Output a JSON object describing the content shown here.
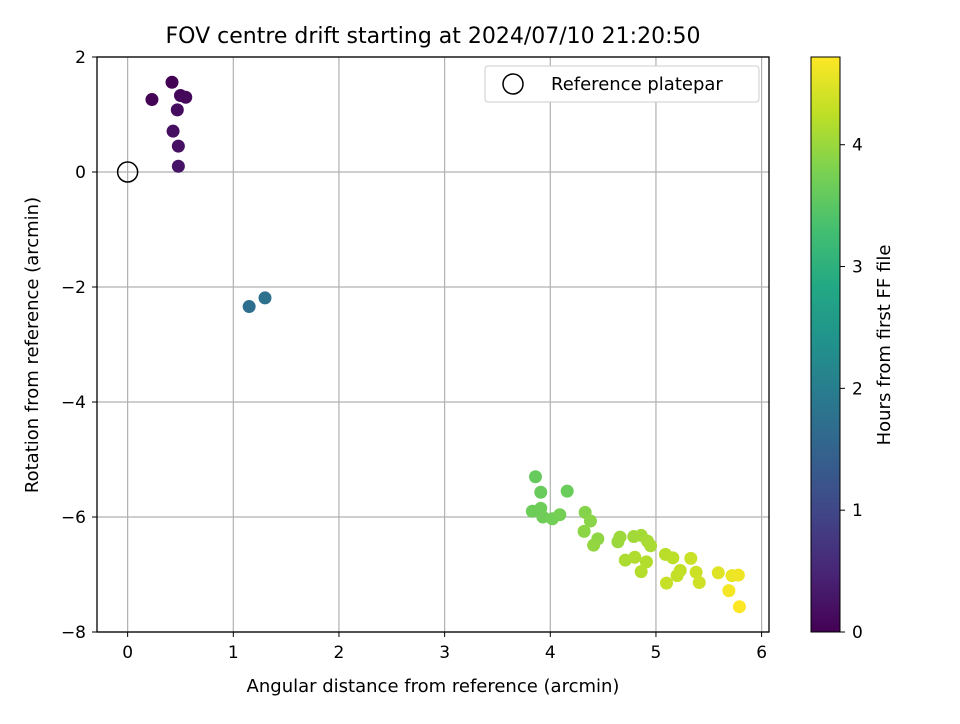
{
  "chart_data": {
    "type": "scatter",
    "title": "FOV centre drift starting at 2024/07/10 21:20:50",
    "xlabel": "Angular distance from reference (arcmin)",
    "ylabel": "Rotation from reference (arcmin)",
    "xlim": [
      -0.29,
      6.07
    ],
    "ylim": [
      -8.0,
      2.0
    ],
    "x_ticks": [
      0,
      1,
      2,
      3,
      4,
      5,
      6
    ],
    "y_ticks": [
      -8,
      -6,
      -4,
      -2,
      0,
      2
    ],
    "grid": true,
    "legend": {
      "placement": "top-right",
      "entries": [
        "Reference platepar"
      ]
    },
    "reference": {
      "x": 0,
      "y": 0,
      "label": "Reference platepar"
    },
    "colorbar": {
      "label": "Hours from first FF file",
      "colormap": "viridis",
      "range": [
        0,
        4.72
      ],
      "ticks": [
        0,
        1,
        2,
        3,
        4
      ]
    },
    "points": [
      {
        "x": 0.42,
        "y": 1.56,
        "h": 0.02
      },
      {
        "x": 0.23,
        "y": 1.26,
        "h": 0.05
      },
      {
        "x": 0.5,
        "y": 1.33,
        "h": 0.08
      },
      {
        "x": 0.55,
        "y": 1.3,
        "h": 0.1
      },
      {
        "x": 0.47,
        "y": 1.08,
        "h": 0.14
      },
      {
        "x": 0.43,
        "y": 0.71,
        "h": 0.18
      },
      {
        "x": 0.48,
        "y": 0.45,
        "h": 0.22
      },
      {
        "x": 0.48,
        "y": 0.1,
        "h": 0.26
      },
      {
        "x": 1.15,
        "y": -2.34,
        "h": 1.7
      },
      {
        "x": 1.3,
        "y": -2.19,
        "h": 1.75
      },
      {
        "x": 3.86,
        "y": -5.3,
        "h": 3.6
      },
      {
        "x": 3.91,
        "y": -5.57,
        "h": 3.62
      },
      {
        "x": 4.16,
        "y": -5.55,
        "h": 3.64
      },
      {
        "x": 3.83,
        "y": -5.9,
        "h": 3.66
      },
      {
        "x": 3.91,
        "y": -5.85,
        "h": 3.66
      },
      {
        "x": 3.93,
        "y": -6.0,
        "h": 3.68
      },
      {
        "x": 4.02,
        "y": -6.03,
        "h": 3.7
      },
      {
        "x": 4.09,
        "y": -5.96,
        "h": 3.72
      },
      {
        "x": 4.33,
        "y": -5.92,
        "h": 3.85
      },
      {
        "x": 4.38,
        "y": -6.07,
        "h": 3.88
      },
      {
        "x": 4.32,
        "y": -6.25,
        "h": 3.9
      },
      {
        "x": 4.45,
        "y": -6.38,
        "h": 3.92
      },
      {
        "x": 4.41,
        "y": -6.49,
        "h": 3.95
      },
      {
        "x": 4.64,
        "y": -6.43,
        "h": 4.0
      },
      {
        "x": 4.66,
        "y": -6.35,
        "h": 4.02
      },
      {
        "x": 4.79,
        "y": -6.34,
        "h": 4.05
      },
      {
        "x": 4.86,
        "y": -6.32,
        "h": 4.07
      },
      {
        "x": 4.92,
        "y": -6.42,
        "h": 4.09
      },
      {
        "x": 4.95,
        "y": -6.5,
        "h": 4.11
      },
      {
        "x": 4.71,
        "y": -6.75,
        "h": 4.13
      },
      {
        "x": 4.8,
        "y": -6.7,
        "h": 4.15
      },
      {
        "x": 4.91,
        "y": -6.78,
        "h": 4.17
      },
      {
        "x": 4.86,
        "y": -6.95,
        "h": 4.19
      },
      {
        "x": 5.09,
        "y": -6.65,
        "h": 4.22
      },
      {
        "x": 5.16,
        "y": -6.71,
        "h": 4.24
      },
      {
        "x": 5.23,
        "y": -6.93,
        "h": 4.27
      },
      {
        "x": 5.2,
        "y": -7.02,
        "h": 4.29
      },
      {
        "x": 5.1,
        "y": -7.15,
        "h": 4.31
      },
      {
        "x": 5.33,
        "y": -6.72,
        "h": 4.34
      },
      {
        "x": 5.38,
        "y": -6.96,
        "h": 4.36
      },
      {
        "x": 5.41,
        "y": -7.14,
        "h": 4.38
      },
      {
        "x": 5.59,
        "y": -6.97,
        "h": 4.5
      },
      {
        "x": 5.72,
        "y": -7.02,
        "h": 4.58
      },
      {
        "x": 5.78,
        "y": -7.01,
        "h": 4.62
      },
      {
        "x": 5.69,
        "y": -7.28,
        "h": 4.65
      },
      {
        "x": 5.79,
        "y": -7.56,
        "h": 4.72
      }
    ]
  }
}
